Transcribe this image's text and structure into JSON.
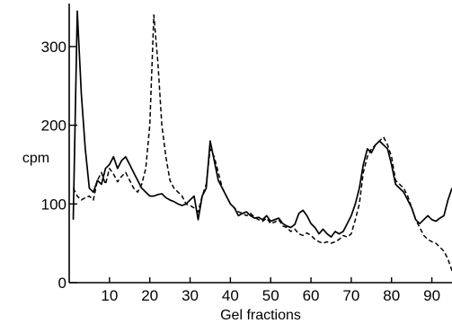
{
  "chart_data": {
    "type": "line",
    "xlabel": "Gel fractions",
    "ylabel": "cpm",
    "xlim": [
      0,
      95
    ],
    "ylim": [
      0,
      350
    ],
    "grid": false,
    "legend": "none",
    "x_ticks": [
      10,
      20,
      30,
      40,
      50,
      60,
      70,
      80,
      90
    ],
    "y_ticks": [
      0,
      100,
      200,
      300
    ],
    "series": [
      {
        "style": "solid",
        "x": [
          1,
          2,
          3,
          4,
          5,
          6,
          7,
          8,
          9,
          10,
          11,
          12,
          13,
          14,
          15,
          16,
          17,
          18,
          19,
          20,
          21,
          22,
          23,
          24,
          25,
          26,
          27,
          28,
          29,
          30,
          31,
          32,
          33,
          34,
          35,
          36,
          37,
          38,
          39,
          40,
          41,
          42,
          43,
          44,
          45,
          46,
          47,
          48,
          49,
          50,
          51,
          52,
          53,
          54,
          55,
          56,
          57,
          58,
          59,
          60,
          61,
          62,
          63,
          64,
          65,
          66,
          67,
          68,
          69,
          70,
          71,
          72,
          73,
          74,
          75,
          76,
          77,
          78,
          79,
          80,
          81,
          82,
          83,
          84,
          85,
          86,
          87,
          88,
          89,
          90,
          91,
          92,
          93,
          94,
          95
        ],
        "values": [
          80,
          345,
          240,
          170,
          120,
          115,
          130,
          125,
          145,
          150,
          160,
          145,
          155,
          160,
          150,
          140,
          130,
          120,
          115,
          110,
          110,
          112,
          113,
          108,
          105,
          103,
          100,
          98,
          100,
          105,
          110,
          80,
          110,
          120,
          180,
          155,
          130,
          120,
          110,
          100,
          95,
          85,
          88,
          90,
          85,
          82,
          83,
          80,
          85,
          78,
          80,
          82,
          75,
          72,
          70,
          74,
          88,
          92,
          85,
          75,
          70,
          62,
          68,
          62,
          58,
          65,
          62,
          65,
          75,
          85,
          100,
          120,
          150,
          170,
          165,
          175,
          180,
          175,
          170,
          150,
          125,
          120,
          115,
          105,
          95,
          80,
          75,
          80,
          85,
          80,
          78,
          82,
          85,
          105,
          120
        ]
      },
      {
        "style": "dashed",
        "x": [
          1,
          2,
          3,
          4,
          5,
          6,
          7,
          8,
          9,
          10,
          11,
          12,
          13,
          14,
          15,
          16,
          17,
          18,
          19,
          20,
          21,
          22,
          23,
          24,
          25,
          26,
          27,
          28,
          29,
          30,
          31,
          32,
          33,
          34,
          35,
          36,
          37,
          38,
          39,
          40,
          41,
          42,
          43,
          44,
          45,
          46,
          47,
          48,
          49,
          50,
          51,
          52,
          53,
          54,
          55,
          56,
          57,
          58,
          59,
          60,
          61,
          62,
          63,
          64,
          65,
          66,
          67,
          68,
          69,
          70,
          71,
          72,
          73,
          74,
          75,
          76,
          77,
          78,
          79,
          80,
          81,
          82,
          83,
          84,
          85,
          86,
          87,
          88,
          89,
          90,
          91,
          92,
          93,
          94,
          95
        ],
        "values": [
          120,
          110,
          105,
          108,
          110,
          105,
          130,
          140,
          125,
          145,
          138,
          128,
          135,
          140,
          130,
          120,
          115,
          125,
          145,
          200,
          340,
          280,
          200,
          160,
          130,
          120,
          115,
          110,
          100,
          98,
          95,
          90,
          110,
          125,
          170,
          160,
          140,
          120,
          110,
          100,
          95,
          90,
          88,
          85,
          88,
          83,
          80,
          78,
          82,
          75,
          77,
          80,
          72,
          70,
          65,
          68,
          62,
          60,
          63,
          60,
          55,
          52,
          50,
          52,
          50,
          52,
          55,
          60,
          58,
          62,
          80,
          100,
          140,
          160,
          170,
          175,
          180,
          185,
          175,
          160,
          130,
          125,
          120,
          110,
          95,
          80,
          70,
          60,
          55,
          52,
          50,
          45,
          40,
          30,
          15
        ]
      }
    ]
  }
}
